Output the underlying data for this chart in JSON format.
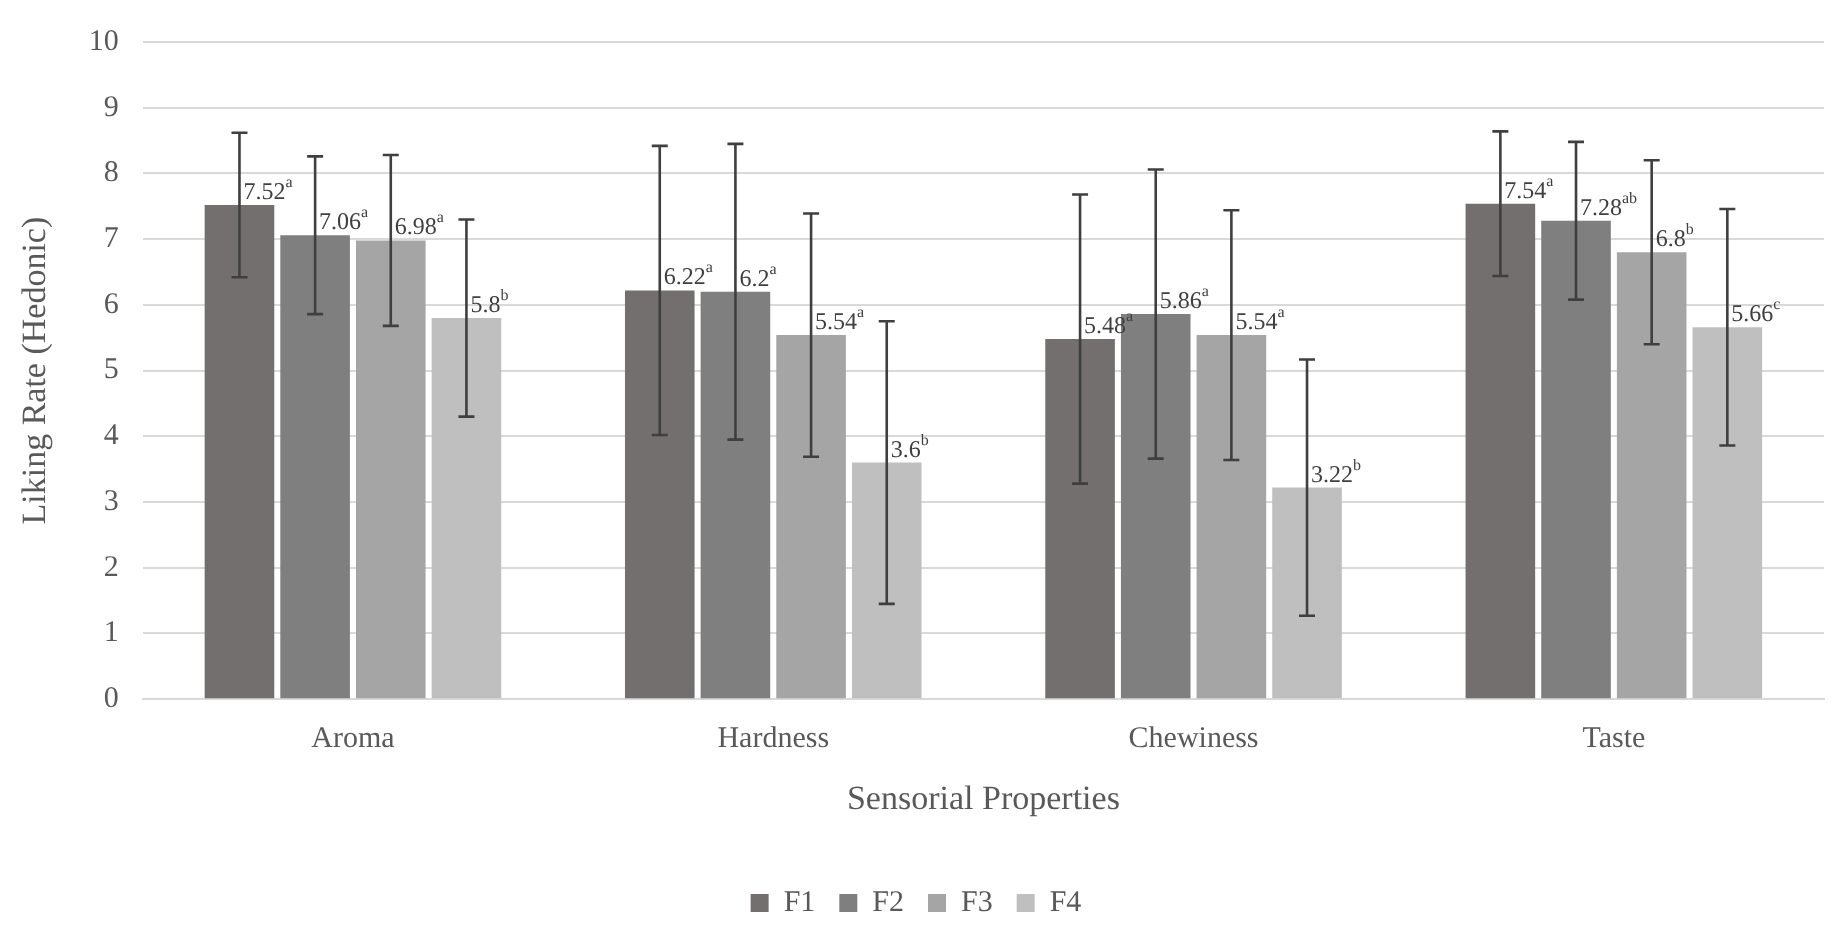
{
  "chart_data": {
    "type": "bar",
    "xlabel": "Sensorial Properties",
    "ylabel": "Liking Rate (Hedonic)",
    "categories": [
      "Aroma",
      "Hardness",
      "Chewiness",
      "Taste"
    ],
    "series": [
      {
        "name": "F1",
        "color": "#736f6e",
        "values": [
          7.52,
          6.22,
          5.48,
          7.54
        ],
        "errors": [
          1.1,
          2.2,
          2.2,
          1.1
        ],
        "value_labels": [
          "7.52$^{a}$",
          "6.22$^{a}$",
          "5.48$^{a}$",
          "7.54$^{a}$"
        ]
      },
      {
        "name": "F2",
        "color": "#7f7f7f",
        "values": [
          7.06,
          6.2,
          5.86,
          7.28
        ],
        "errors": [
          1.2,
          2.25,
          2.2,
          1.2
        ],
        "value_labels": [
          "7.06$^{a}$",
          "6.2$^{a}$",
          "5.86$^{a}$",
          "7.28$^{ab}$"
        ]
      },
      {
        "name": "F3",
        "color": "#a5a5a5",
        "values": [
          6.98,
          5.54,
          5.54,
          6.8
        ],
        "errors": [
          1.3,
          1.85,
          1.9,
          1.4
        ],
        "value_labels": [
          "6.98$^{a}$",
          "5.54$^{a}$",
          "5.54$^{a}$",
          "6.8$^{b}$"
        ]
      },
      {
        "name": "F4",
        "color": "#bfbfbf",
        "values": [
          5.8,
          3.6,
          3.22,
          5.66
        ],
        "errors": [
          1.5,
          2.15,
          1.95,
          1.8
        ],
        "value_labels": [
          "5.8$^{b}$",
          "3.6$^{b}$",
          "3.22$^{b}$",
          "5.66$^{c}$"
        ]
      }
    ],
    "ylim": [
      0,
      10
    ],
    "yticks": [
      0,
      1,
      2,
      3,
      4,
      5,
      6,
      7,
      8,
      9,
      10
    ],
    "grid": "y",
    "legend": "bottom"
  }
}
